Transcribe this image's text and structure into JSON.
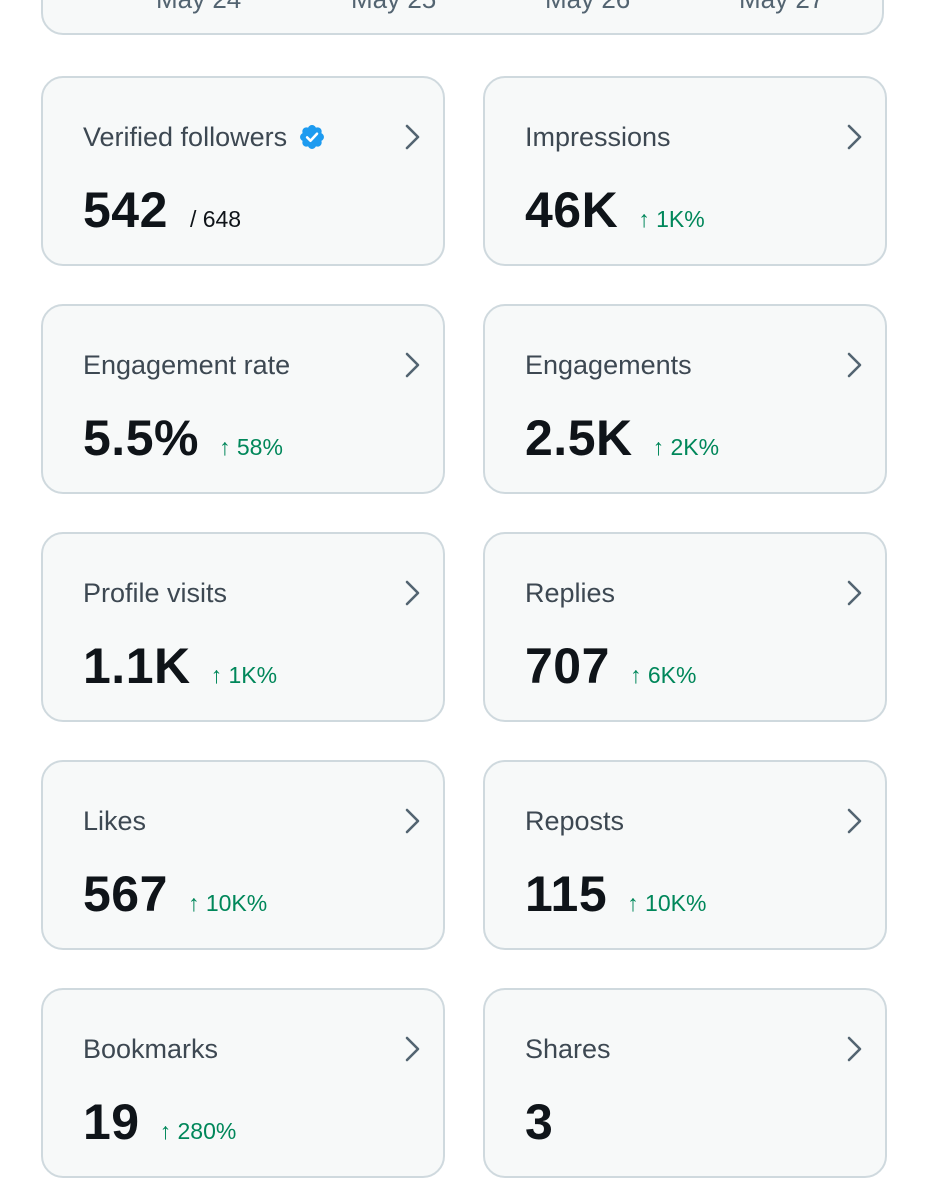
{
  "chart_axis": {
    "dates": [
      "May 24",
      "May 25",
      "May 26",
      "May 27"
    ]
  },
  "cards": [
    {
      "title": "Verified followers",
      "value": "542",
      "sub": "/ 648",
      "delta": "",
      "verified": true
    },
    {
      "title": "Impressions",
      "value": "46K",
      "sub": "",
      "delta": "↑ 1K%"
    },
    {
      "title": "Engagement rate",
      "value": "5.5%",
      "sub": "",
      "delta": "↑ 58%"
    },
    {
      "title": "Engagements",
      "value": "2.5K",
      "sub": "",
      "delta": "↑ 2K%"
    },
    {
      "title": "Profile visits",
      "value": "1.1K",
      "sub": "",
      "delta": "↑ 1K%"
    },
    {
      "title": "Replies",
      "value": "707",
      "sub": "",
      "delta": "↑ 6K%"
    },
    {
      "title": "Likes",
      "value": "567",
      "sub": "",
      "delta": "↑ 10K%"
    },
    {
      "title": "Reposts",
      "value": "115",
      "sub": "",
      "delta": "↑ 10K%"
    },
    {
      "title": "Bookmarks",
      "value": "19",
      "sub": "",
      "delta": "↑ 280%"
    },
    {
      "title": "Shares",
      "value": "3",
      "sub": "",
      "delta": ""
    }
  ],
  "colors": {
    "positive": "#00875a",
    "verified": "#1d9bf0",
    "card_border": "#cfd9de",
    "card_bg": "#f7f9f9"
  },
  "icons": {
    "card_arrow": "chevron-right-icon",
    "verified_badge": "verified-badge-icon"
  }
}
